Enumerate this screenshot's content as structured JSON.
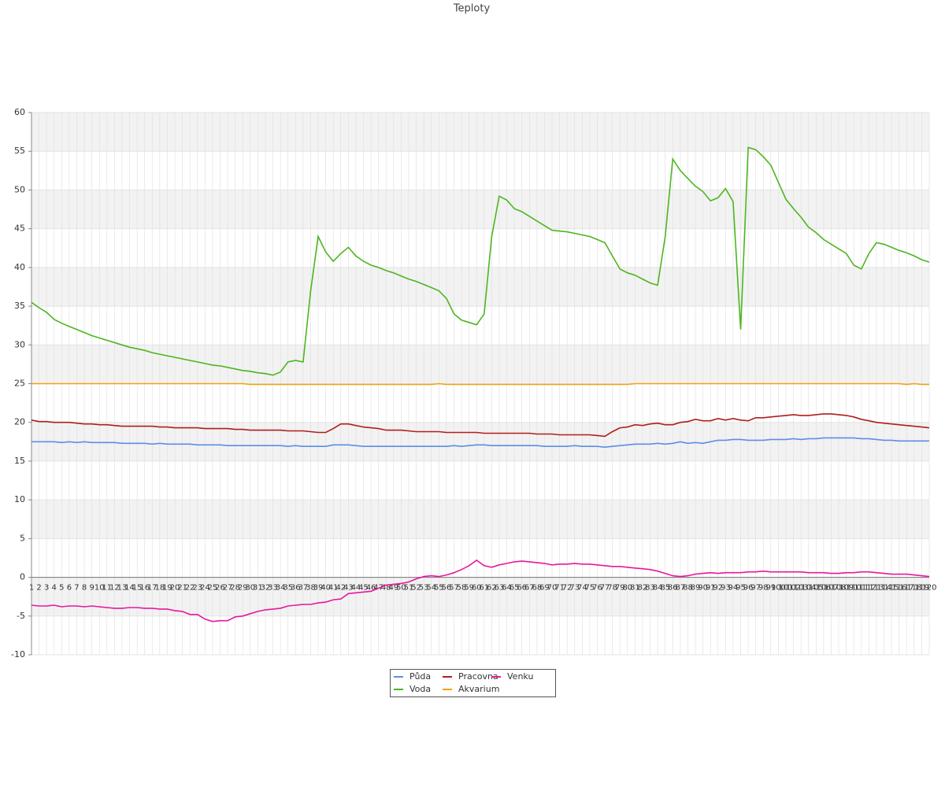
{
  "chart_data": {
    "type": "line",
    "title": "Teploty",
    "categories": [
      1,
      2,
      3,
      4,
      5,
      6,
      7,
      8,
      9,
      10,
      11,
      12,
      13,
      14,
      15,
      16,
      17,
      18,
      19,
      20,
      21,
      22,
      23,
      24,
      25,
      26,
      27,
      28,
      29,
      30,
      31,
      32,
      33,
      34,
      35,
      36,
      37,
      38,
      39,
      40,
      41,
      42,
      43,
      44,
      45,
      46,
      47,
      48,
      49,
      50,
      51,
      52,
      53,
      54,
      55,
      56,
      57,
      58,
      59,
      60,
      61,
      62,
      63,
      64,
      65,
      66,
      67,
      68,
      69,
      70,
      71,
      72,
      73,
      74,
      75,
      76,
      77,
      78,
      79,
      80,
      81,
      82,
      83,
      84,
      85,
      86,
      87,
      88,
      89,
      90,
      91,
      92,
      93,
      94,
      95,
      96,
      97,
      98,
      99,
      100,
      101,
      102,
      103,
      104,
      105,
      106,
      107,
      108,
      109,
      110,
      111,
      112,
      113,
      114,
      115,
      116,
      117,
      118,
      119,
      120
    ],
    "series": [
      {
        "name": "Půda",
        "color": "#5b8ee6",
        "values": [
          17.5,
          17.5,
          17.5,
          17.5,
          17.4,
          17.5,
          17.4,
          17.5,
          17.4,
          17.4,
          17.4,
          17.4,
          17.3,
          17.3,
          17.3,
          17.3,
          17.2,
          17.3,
          17.2,
          17.2,
          17.2,
          17.2,
          17.1,
          17.1,
          17.1,
          17.1,
          17,
          17,
          17,
          17,
          17,
          17,
          17,
          17,
          16.9,
          17,
          16.9,
          16.9,
          16.9,
          16.9,
          17.1,
          17.1,
          17.1,
          17,
          16.9,
          16.9,
          16.9,
          16.9,
          16.9,
          16.9,
          16.9,
          16.9,
          16.9,
          16.9,
          16.9,
          16.9,
          17,
          16.9,
          17,
          17.1,
          17.1,
          17,
          17,
          17,
          17,
          17,
          17,
          17,
          16.9,
          16.9,
          16.9,
          16.9,
          17,
          16.9,
          16.9,
          16.9,
          16.8,
          16.9,
          17,
          17.1,
          17.2,
          17.2,
          17.2,
          17.3,
          17.2,
          17.3,
          17.5,
          17.3,
          17.4,
          17.3,
          17.5,
          17.7,
          17.7,
          17.8,
          17.8,
          17.7,
          17.7,
          17.7,
          17.8,
          17.8,
          17.8,
          17.9,
          17.8,
          17.9,
          17.9,
          18,
          18,
          18,
          18,
          18,
          17.9,
          17.9,
          17.8,
          17.7,
          17.7,
          17.6,
          17.6,
          17.6,
          17.6,
          17.6
        ]
      },
      {
        "name": "Voda",
        "color": "#4db51f",
        "values": [
          35.5,
          34.8,
          34.2,
          33.3,
          32.8,
          32.4,
          32,
          31.6,
          31.2,
          30.9,
          30.6,
          30.3,
          30,
          29.7,
          29.5,
          29.3,
          29,
          28.8,
          28.6,
          28.4,
          28.2,
          28,
          27.8,
          27.6,
          27.4,
          27.3,
          27.1,
          26.9,
          26.7,
          26.6,
          26.4,
          26.3,
          26.1,
          26.5,
          27.8,
          28,
          27.8,
          37,
          44,
          42,
          40.8,
          41.8,
          42.6,
          41.5,
          40.8,
          40.3,
          40,
          39.6,
          39.3,
          38.9,
          38.5,
          38.2,
          37.8,
          37.4,
          37,
          36,
          34,
          33.2,
          32.9,
          32.6,
          34,
          44,
          49.2,
          48.7,
          47.6,
          47.2,
          46.6,
          46,
          45.4,
          44.8,
          44.7,
          44.6,
          44.4,
          44.2,
          44,
          43.6,
          43.2,
          41.5,
          39.8,
          39.3,
          39,
          38.5,
          38,
          37.7,
          44,
          54,
          52.5,
          51.5,
          50.5,
          49.8,
          48.6,
          49,
          50.2,
          48.5,
          32,
          55.5,
          55.2,
          54.3,
          53.2,
          51,
          48.8,
          47.6,
          46.5,
          45.2,
          44.5,
          43.6,
          43,
          42.4,
          41.8,
          40.3,
          39.8,
          41.8,
          43.2,
          43,
          42.6,
          42.2,
          41.9,
          41.5,
          41,
          40.7
        ]
      },
      {
        "name": "Pracovna",
        "color": "#b01d1d",
        "values": [
          20.3,
          20.1,
          20.1,
          20,
          20,
          20,
          19.9,
          19.8,
          19.8,
          19.7,
          19.7,
          19.6,
          19.5,
          19.5,
          19.5,
          19.5,
          19.5,
          19.4,
          19.4,
          19.3,
          19.3,
          19.3,
          19.3,
          19.2,
          19.2,
          19.2,
          19.2,
          19.1,
          19.1,
          19,
          19,
          19,
          19,
          19,
          18.9,
          18.9,
          18.9,
          18.8,
          18.7,
          18.7,
          19.2,
          19.8,
          19.8,
          19.6,
          19.4,
          19.3,
          19.2,
          19,
          19,
          19,
          18.9,
          18.8,
          18.8,
          18.8,
          18.8,
          18.7,
          18.7,
          18.7,
          18.7,
          18.7,
          18.6,
          18.6,
          18.6,
          18.6,
          18.6,
          18.6,
          18.6,
          18.5,
          18.5,
          18.5,
          18.4,
          18.4,
          18.4,
          18.4,
          18.4,
          18.3,
          18.2,
          18.8,
          19.3,
          19.4,
          19.7,
          19.6,
          19.8,
          19.9,
          19.7,
          19.7,
          20,
          20.1,
          20.4,
          20.2,
          20.2,
          20.5,
          20.3,
          20.5,
          20.3,
          20.2,
          20.6,
          20.6,
          20.7,
          20.8,
          20.9,
          21,
          20.9,
          20.9,
          21,
          21.1,
          21.1,
          21,
          20.9,
          20.7,
          20.4,
          20.2,
          20,
          19.9,
          19.8,
          19.7,
          19.6,
          19.5,
          19.4,
          19.3
        ]
      },
      {
        "name": "Akvarium",
        "color": "#f0a30a",
        "values": [
          25,
          25,
          25,
          25,
          25,
          25,
          25,
          25,
          25,
          25,
          25,
          25,
          25,
          25,
          25,
          25,
          25,
          25,
          25,
          25,
          25,
          25,
          25,
          25,
          25,
          25,
          25,
          25,
          25,
          24.9,
          24.9,
          24.9,
          24.9,
          24.9,
          24.9,
          24.9,
          24.9,
          24.9,
          24.9,
          24.9,
          24.9,
          24.9,
          24.9,
          24.9,
          24.9,
          24.9,
          24.9,
          24.9,
          24.9,
          24.9,
          24.9,
          24.9,
          24.9,
          24.9,
          25,
          24.9,
          24.9,
          24.9,
          24.9,
          24.9,
          24.9,
          24.9,
          24.9,
          24.9,
          24.9,
          24.9,
          24.9,
          24.9,
          24.9,
          24.9,
          24.9,
          24.9,
          24.9,
          24.9,
          24.9,
          24.9,
          24.9,
          24.9,
          24.9,
          24.9,
          25,
          25,
          25,
          25,
          25,
          25,
          25,
          25,
          25,
          25,
          25,
          25,
          25,
          25,
          25,
          25,
          25,
          25,
          25,
          25,
          25,
          25,
          25,
          25,
          25,
          25,
          25,
          25,
          25,
          25,
          25,
          25,
          25,
          25,
          25,
          25,
          24.9,
          25,
          24.9,
          24.9
        ]
      },
      {
        "name": "Venku",
        "color": "#e6189e",
        "values": [
          -3.6,
          -3.7,
          -3.7,
          -3.6,
          -3.8,
          -3.7,
          -3.7,
          -3.8,
          -3.7,
          -3.8,
          -3.9,
          -4,
          -4,
          -3.9,
          -3.9,
          -4,
          -4,
          -4.1,
          -4.1,
          -4.3,
          -4.4,
          -4.8,
          -4.8,
          -5.4,
          -5.7,
          -5.6,
          -5.6,
          -5.1,
          -5,
          -4.7,
          -4.4,
          -4.2,
          -4.1,
          -4,
          -3.7,
          -3.6,
          -3.5,
          -3.5,
          -3.3,
          -3.2,
          -2.9,
          -2.8,
          -2.1,
          -2,
          -1.9,
          -1.8,
          -1.4,
          -1,
          -0.9,
          -0.8,
          -0.6,
          -0.2,
          0.1,
          0.2,
          0.1,
          0.3,
          0.6,
          1,
          1.5,
          2.2,
          1.5,
          1.3,
          1.6,
          1.8,
          2,
          2.1,
          2,
          1.9,
          1.8,
          1.6,
          1.7,
          1.7,
          1.8,
          1.7,
          1.7,
          1.6,
          1.5,
          1.4,
          1.4,
          1.3,
          1.2,
          1.1,
          1,
          0.8,
          0.5,
          0.2,
          0.1,
          0.2,
          0.4,
          0.5,
          0.6,
          0.5,
          0.6,
          0.6,
          0.6,
          0.7,
          0.7,
          0.8,
          0.7,
          0.7,
          0.7,
          0.7,
          0.7,
          0.6,
          0.6,
          0.6,
          0.5,
          0.5,
          0.6,
          0.6,
          0.7,
          0.7,
          0.6,
          0.5,
          0.4,
          0.4,
          0.4,
          0.3,
          0.2,
          0.1
        ]
      }
    ],
    "ylim": [
      -10,
      60
    ],
    "yticks": [
      -10,
      -5,
      0,
      5,
      10,
      15,
      20,
      25,
      30,
      35,
      40,
      45,
      50,
      55,
      60
    ],
    "grid": true
  }
}
